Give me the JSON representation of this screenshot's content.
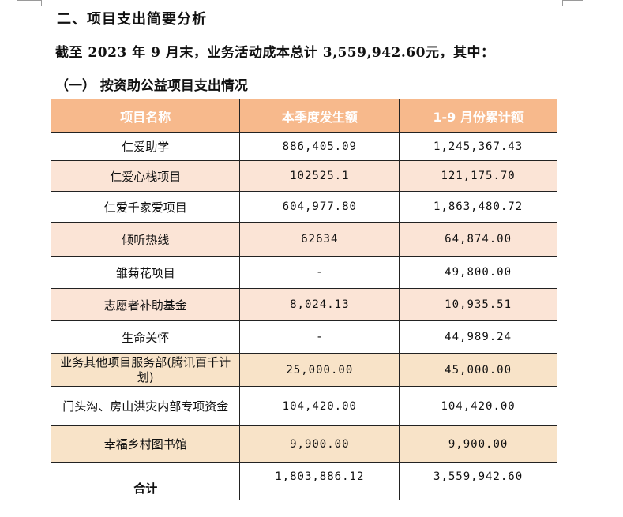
{
  "section_heading": "二、项目支出简要分析",
  "summary": "截至 2023 年 9 月末，业务活动成本总计 3,559,942.60元，其中：",
  "subheading": "（一）  按资助公益项目支出情况",
  "table": {
    "headers": [
      "项目名称",
      "本季度发生额",
      "1-9 月份累计额"
    ],
    "rows": [
      {
        "name": "仁爱助学",
        "quarter": "886,405.09",
        "ytd": "1,245,367.43"
      },
      {
        "name": "仁爱心栈项目",
        "quarter": "102525.1",
        "ytd": "121,175.70"
      },
      {
        "name": "仁爱千家爱项目",
        "quarter": "604,977.80",
        "ytd": "1,863,480.72"
      },
      {
        "name": "倾听热线",
        "quarter": "62634",
        "ytd": "64,874.00"
      },
      {
        "name": "雏菊花项目",
        "quarter": "-",
        "ytd": "49,800.00"
      },
      {
        "name": "志愿者补助基金",
        "quarter": "8,024.13",
        "ytd": "10,935.51"
      },
      {
        "name": "生命关怀",
        "quarter": "-",
        "ytd": "44,989.24"
      },
      {
        "name": "业务其他项目服务部(腾讯百千计划)",
        "quarter": "25,000.00",
        "ytd": "45,000.00"
      },
      {
        "name": "门头沟、房山洪灾内部专项资金",
        "quarter": "104,420.00",
        "ytd": "104,420.00"
      },
      {
        "name": "幸福乡村图书馆",
        "quarter": "9,900.00",
        "ytd": "9,900.00"
      }
    ],
    "total": {
      "name": "合计",
      "quarter": "1,803,886.12",
      "ytd": "3,559,942.60"
    }
  }
}
